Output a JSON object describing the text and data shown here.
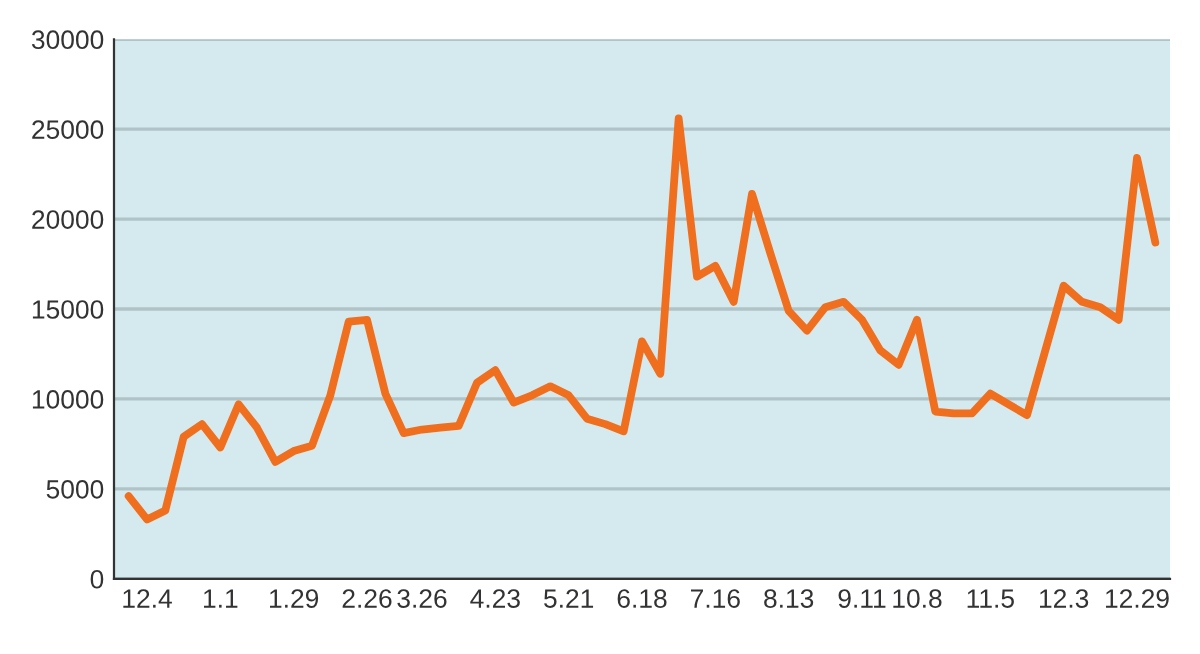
{
  "chart_data": {
    "type": "line",
    "categories": [
      null,
      "12.4",
      null,
      null,
      null,
      "1.1",
      null,
      null,
      null,
      "1.29",
      null,
      null,
      null,
      "2.26",
      null,
      null,
      "3.26",
      null,
      null,
      null,
      "4.23",
      null,
      null,
      null,
      "5.21",
      null,
      null,
      null,
      "6.18",
      null,
      null,
      null,
      "7.16",
      null,
      null,
      null,
      "8.13",
      null,
      null,
      null,
      "9.11",
      null,
      null,
      "10.8",
      null,
      null,
      null,
      "11.5",
      null,
      null,
      null,
      "12.3",
      null,
      null,
      null,
      "12.29",
      null
    ],
    "series": [
      {
        "color": "#ef6f1f",
        "values": [
          4600,
          3300,
          3800,
          7900,
          8600,
          7300,
          9700,
          8400,
          6500,
          7100,
          7400,
          10200,
          14300,
          14400,
          10300,
          8100,
          8300,
          8400,
          8500,
          10900,
          11600,
          9800,
          10200,
          10700,
          10200,
          8900,
          8600,
          8200,
          13200,
          11400,
          25600,
          16800,
          17400,
          15400,
          21400,
          18100,
          14900,
          13800,
          15100,
          15400,
          14400,
          12700,
          11900,
          14400,
          9300,
          9200,
          9200,
          10300,
          9700,
          9100,
          12700,
          16300,
          15400,
          15100,
          14400,
          23400,
          18700
        ]
      }
    ],
    "ylim": [
      0,
      30000
    ],
    "yticks": [
      0,
      5000,
      10000,
      15000,
      20000,
      25000,
      30000
    ],
    "grid": "y",
    "legend": false,
    "marker": "none",
    "line_style": "solid"
  }
}
